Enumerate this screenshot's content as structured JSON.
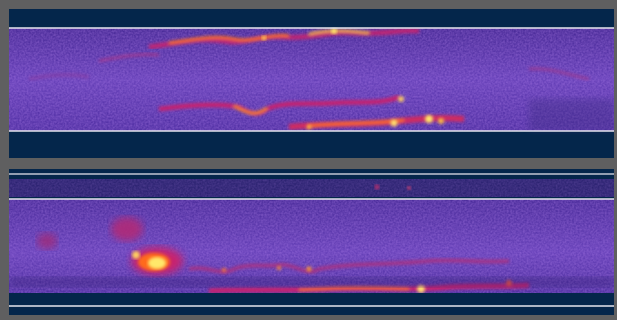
{
  "figure": {
    "panels": [
      {
        "id": "top"
      },
      {
        "id": "bottom"
      }
    ],
    "colors": {
      "background": "#5f5f60",
      "panel": "#04264b",
      "field_dark": "#3b1f8f",
      "field_mid": "#6a3cb8",
      "hot_magenta": "#d6286e",
      "hot_orange": "#ff6a1a",
      "hot_yellow": "#ffe86a",
      "guide_line": "#e6e6ee"
    }
  }
}
